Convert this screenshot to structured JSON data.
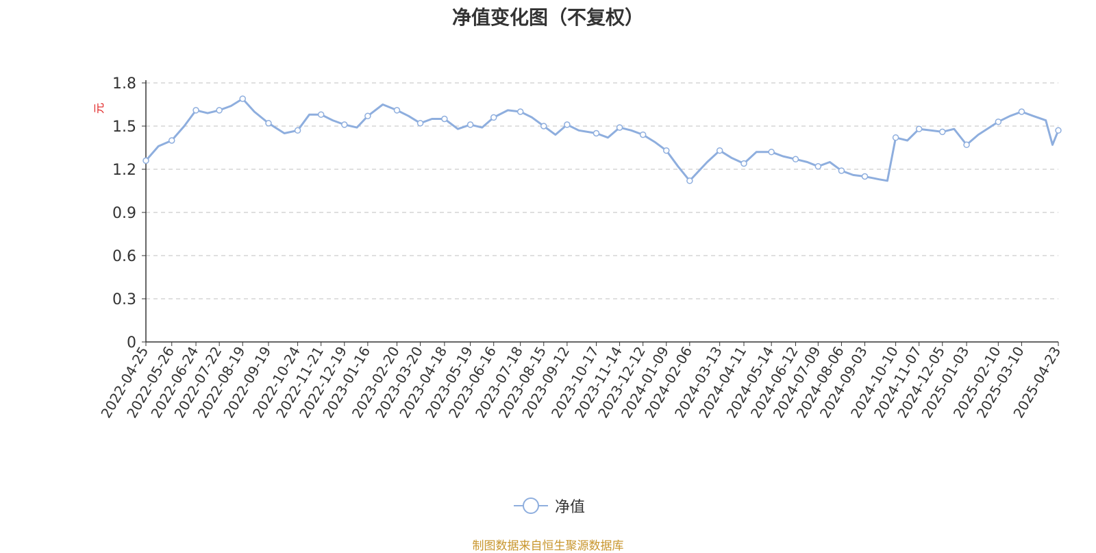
{
  "title": "净值变化图（不复权）",
  "footer": "制图数据来自恒生聚源数据库",
  "colors": {
    "line": "#8eaede",
    "axis": "#333333",
    "grid": "#cccccc",
    "ylabel": "#e02020",
    "footer": "#c8962e"
  },
  "chart_data": {
    "type": "line",
    "title": "净值变化图（不复权）",
    "ylabel": "元",
    "xlabel": "",
    "ylim": [
      0,
      1.8
    ],
    "yticks": [
      "0",
      "0.3",
      "0.6",
      "0.9",
      "1.2",
      "1.5",
      "1.8"
    ],
    "grid": true,
    "legend_position": "bottom-center",
    "x_tick_labels": [
      "2022-04-25",
      "2022-05-26",
      "2022-06-24",
      "2022-07-22",
      "2022-08-19",
      "2022-09-19",
      "2022-10-24",
      "2022-11-21",
      "2022-12-19",
      "2023-01-16",
      "2023-02-20",
      "2023-03-20",
      "2023-04-18",
      "2023-05-19",
      "2023-06-16",
      "2023-07-18",
      "2023-08-15",
      "2023-09-12",
      "2023-10-17",
      "2023-11-14",
      "2023-12-12",
      "2024-01-09",
      "2024-02-06",
      "2024-03-13",
      "2024-04-11",
      "2024-05-14",
      "2024-06-12",
      "2024-07-09",
      "2024-08-06",
      "2024-09-03",
      "2024-10-10",
      "2024-11-07",
      "2024-12-05",
      "2025-01-03",
      "2025-02-10",
      "2025-03-10",
      "2025-04-23"
    ],
    "series": [
      {
        "name": "净值",
        "x": [
          "2022-04-25",
          "2022-05-10",
          "2022-05-26",
          "2022-06-10",
          "2022-06-24",
          "2022-07-08",
          "2022-07-22",
          "2022-08-05",
          "2022-08-19",
          "2022-09-02",
          "2022-09-19",
          "2022-10-08",
          "2022-10-24",
          "2022-11-07",
          "2022-11-21",
          "2022-12-05",
          "2022-12-19",
          "2023-01-03",
          "2023-01-16",
          "2023-02-03",
          "2023-02-20",
          "2023-03-06",
          "2023-03-20",
          "2023-04-03",
          "2023-04-18",
          "2023-05-04",
          "2023-05-19",
          "2023-06-02",
          "2023-06-16",
          "2023-07-03",
          "2023-07-18",
          "2023-08-01",
          "2023-08-15",
          "2023-08-29",
          "2023-09-12",
          "2023-09-26",
          "2023-10-17",
          "2023-10-31",
          "2023-11-14",
          "2023-11-28",
          "2023-12-12",
          "2023-12-26",
          "2024-01-09",
          "2024-01-23",
          "2024-02-06",
          "2024-02-27",
          "2024-03-13",
          "2024-03-27",
          "2024-04-11",
          "2024-04-26",
          "2024-05-14",
          "2024-05-28",
          "2024-06-12",
          "2024-06-26",
          "2024-07-09",
          "2024-07-23",
          "2024-08-06",
          "2024-08-20",
          "2024-09-03",
          "2024-09-20",
          "2024-09-30",
          "2024-10-10",
          "2024-10-24",
          "2024-11-07",
          "2024-11-21",
          "2024-12-05",
          "2024-12-19",
          "2025-01-03",
          "2025-01-17",
          "2025-02-10",
          "2025-02-24",
          "2025-03-10",
          "2025-03-24",
          "2025-04-08",
          "2025-04-16",
          "2025-04-23"
        ],
        "values": [
          1.26,
          1.36,
          1.4,
          1.5,
          1.61,
          1.59,
          1.61,
          1.64,
          1.69,
          1.6,
          1.52,
          1.45,
          1.47,
          1.58,
          1.58,
          1.54,
          1.51,
          1.49,
          1.57,
          1.65,
          1.61,
          1.57,
          1.52,
          1.55,
          1.55,
          1.48,
          1.51,
          1.49,
          1.56,
          1.61,
          1.6,
          1.56,
          1.5,
          1.44,
          1.51,
          1.47,
          1.45,
          1.42,
          1.49,
          1.47,
          1.44,
          1.39,
          1.33,
          1.22,
          1.12,
          1.25,
          1.33,
          1.28,
          1.24,
          1.32,
          1.32,
          1.29,
          1.27,
          1.25,
          1.22,
          1.25,
          1.19,
          1.16,
          1.15,
          1.13,
          1.12,
          1.42,
          1.4,
          1.48,
          1.47,
          1.46,
          1.48,
          1.37,
          1.44,
          1.53,
          1.57,
          1.6,
          1.57,
          1.54,
          1.37,
          1.47
        ]
      }
    ]
  }
}
